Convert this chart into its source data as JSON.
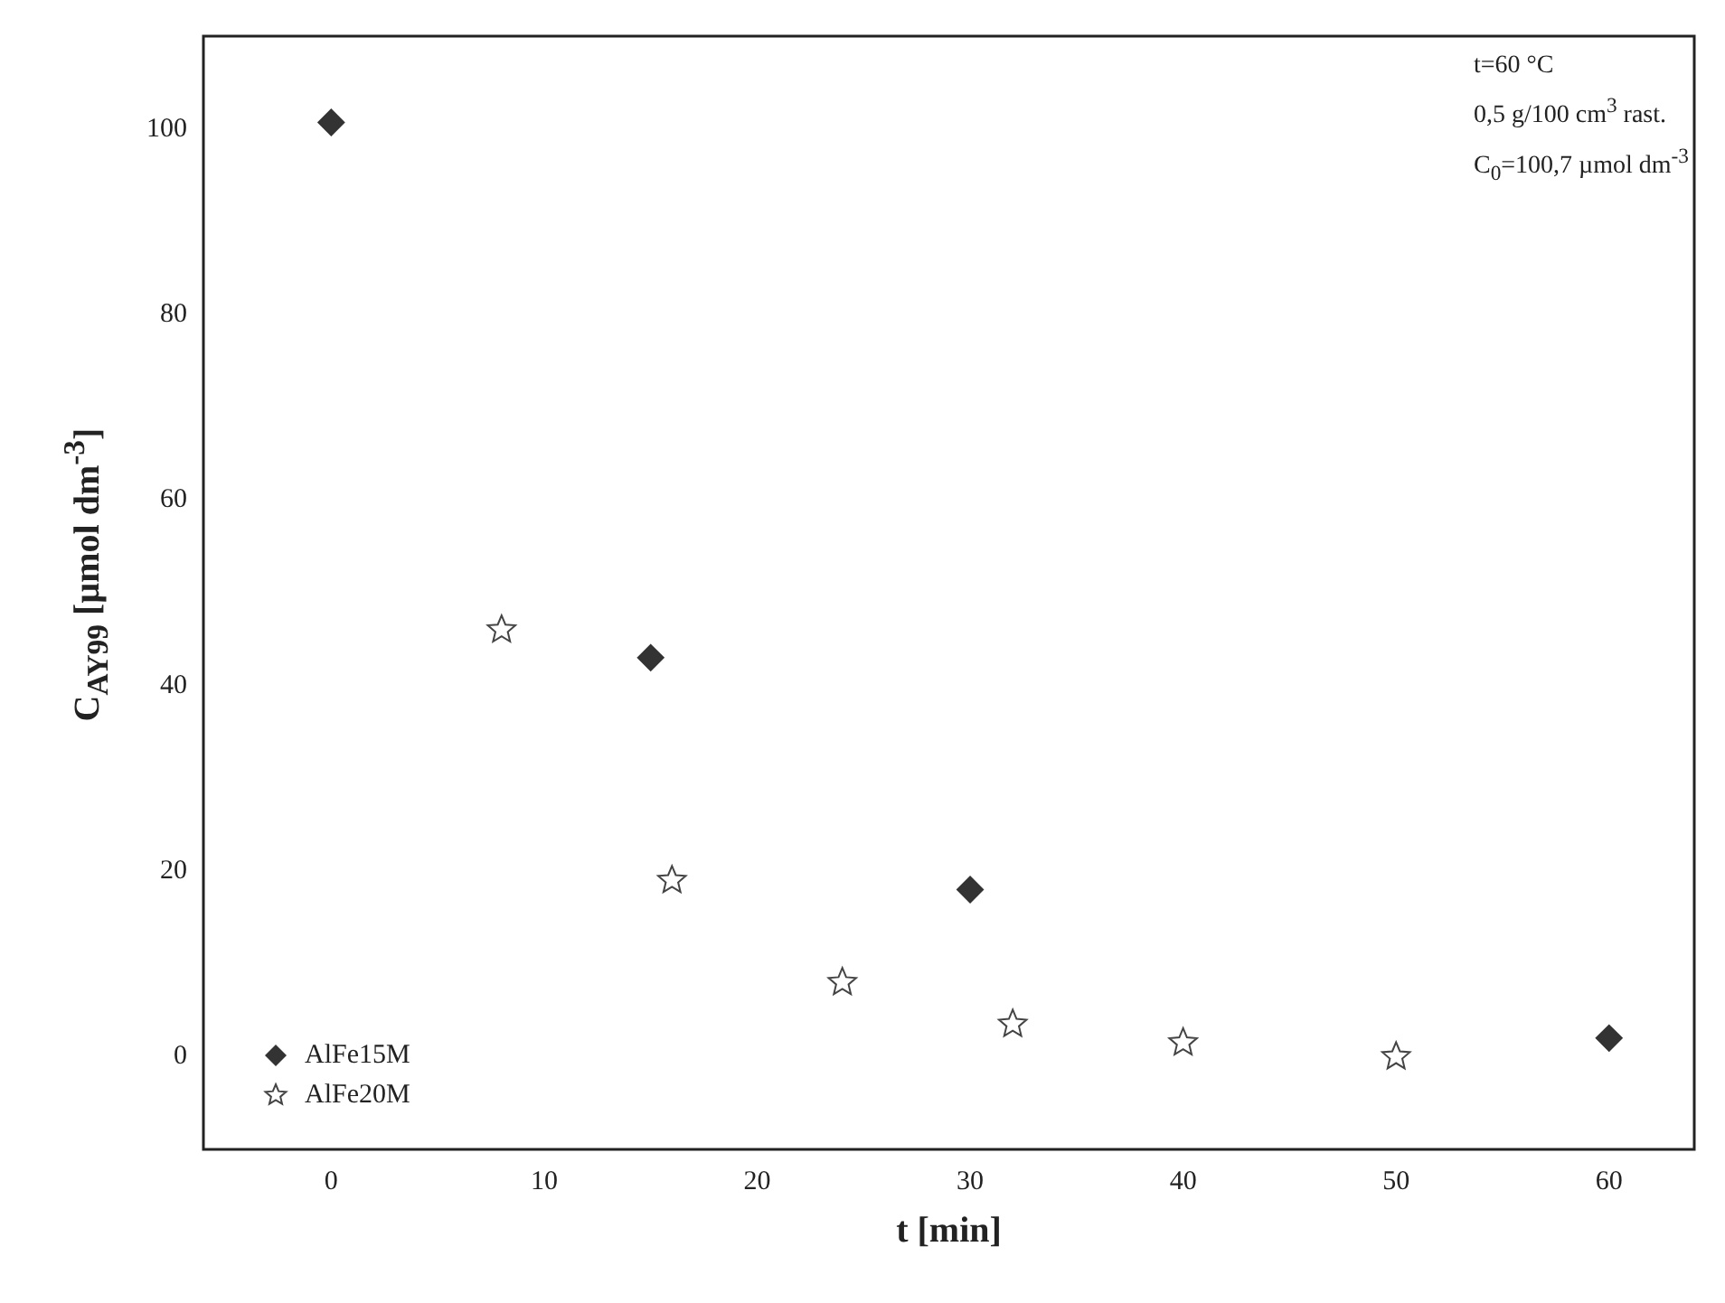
{
  "chart_data": {
    "type": "scatter",
    "xlabel": "t [min]",
    "ylabel": "C$_{AY99}$ [µmol dm$^{-3}$]",
    "annotations": [
      "t=60 °C",
      "0,5 g/100 cm$^{3}$ rast.",
      "C$_{0}$=100,7 µmol dm$^{-3}$"
    ],
    "series": [
      {
        "name": "AlFe15M",
        "color": "#333333",
        "marker": "diamond",
        "x": [
          0,
          15,
          30,
          60
        ],
        "values": [
          100.7,
          43,
          18,
          2
        ]
      },
      {
        "name": "AlFe20M",
        "color": "#444444",
        "marker": "star",
        "x": [
          8,
          16,
          24,
          32,
          40,
          50
        ],
        "values": [
          46,
          19,
          8,
          3.5,
          1.5,
          0
        ]
      }
    ],
    "xlim": [
      -6,
      64
    ],
    "xticks": [
      0,
      10,
      20,
      30,
      40,
      50,
      60
    ],
    "ylim": [
      -10,
      110
    ],
    "yticks": [
      0,
      20,
      40,
      60,
      80,
      100
    ],
    "grid": false,
    "legend": "bottom left"
  }
}
